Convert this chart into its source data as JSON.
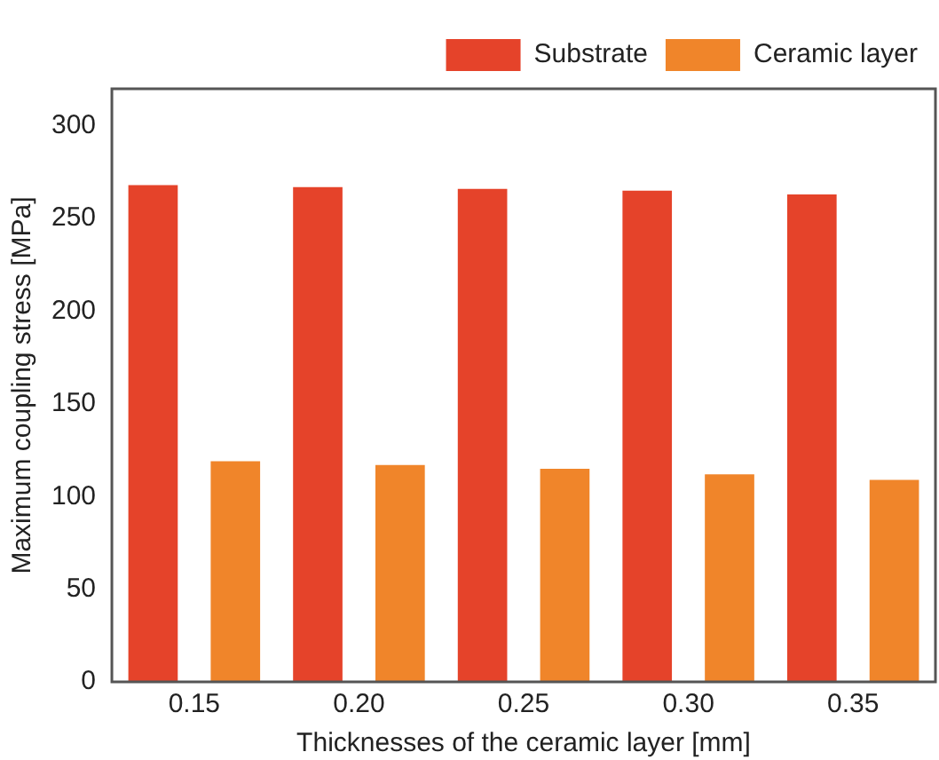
{
  "chart_data": {
    "type": "bar",
    "xlabel": "Thicknesses of the ceramic layer [mm]",
    "ylabel": "Maximum coupling stress [MPa]",
    "categories": [
      "0.15",
      "0.20",
      "0.25",
      "0.30",
      "0.35"
    ],
    "series": [
      {
        "name": "Substrate",
        "color": "#e5432a",
        "values": [
          268,
          267,
          266,
          265,
          263
        ]
      },
      {
        "name": "Ceramic layer",
        "color": "#f0852a",
        "values": [
          119,
          117,
          115,
          112,
          109
        ]
      }
    ],
    "ylim": [
      0,
      320
    ],
    "yticks": [
      0,
      50,
      100,
      150,
      200,
      250,
      300
    ],
    "grid": false,
    "legend": "top right"
  }
}
